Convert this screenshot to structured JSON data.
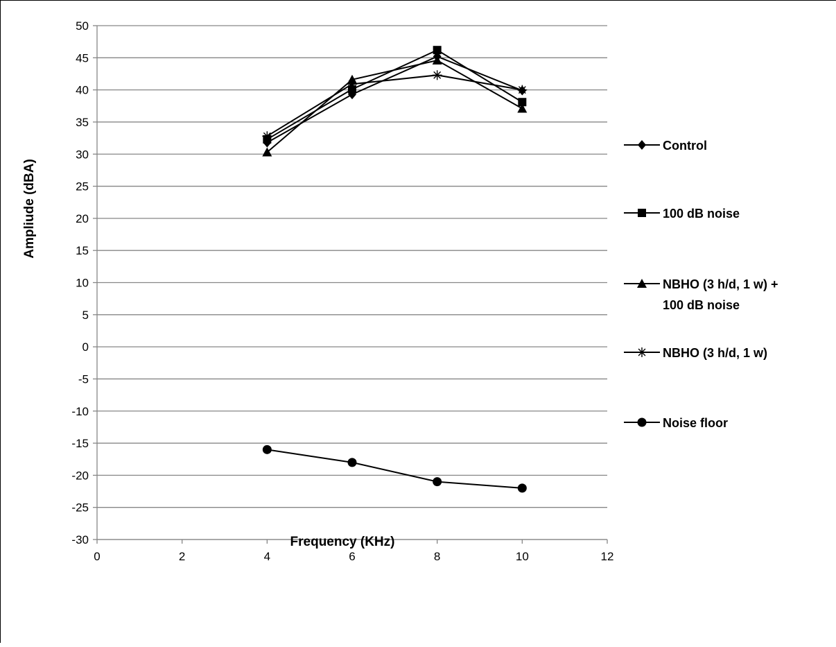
{
  "chart_data": {
    "type": "line",
    "title": "",
    "xlabel": "Frequency (KHz)",
    "ylabel": "Ampliude (dBA)",
    "xlim": [
      0,
      12
    ],
    "ylim": [
      -30,
      50
    ],
    "xticks": [
      "0",
      "2",
      "4",
      "6",
      "8",
      "10",
      "12"
    ],
    "yticks": [
      "-30",
      "-25",
      "-20",
      "-15",
      "-10",
      "-5",
      "0",
      "5",
      "10",
      "15",
      "20",
      "25",
      "30",
      "35",
      "40",
      "45",
      "50"
    ],
    "grid": "horizontal",
    "legend_position": "right",
    "x": [
      4,
      6,
      8,
      10
    ],
    "series": [
      {
        "name": "Control",
        "marker": "diamond",
        "values": [
          31.8,
          39.3,
          45.2,
          39.9
        ]
      },
      {
        "name": "100 dB noise",
        "marker": "square",
        "values": [
          32.3,
          40.1,
          46.2,
          38.1
        ]
      },
      {
        "name": "NBHO (3 h/d, 1 w) + 100 dB noise",
        "legend_lines": [
          "NBHO (3 h/d, 1 w) +",
          "100 dB noise"
        ],
        "marker": "triangle",
        "values": [
          30.3,
          41.6,
          44.6,
          37.1
        ]
      },
      {
        "name": "NBHO (3 h/d, 1 w)",
        "marker": "star",
        "values": [
          32.8,
          40.9,
          42.3,
          40.0
        ]
      },
      {
        "name": "Noise floor",
        "marker": "circle",
        "values": [
          -16,
          -18,
          -21,
          -22
        ]
      }
    ],
    "colors": {
      "line": "#000000",
      "grid": "#868686",
      "axis": "#868686"
    }
  }
}
